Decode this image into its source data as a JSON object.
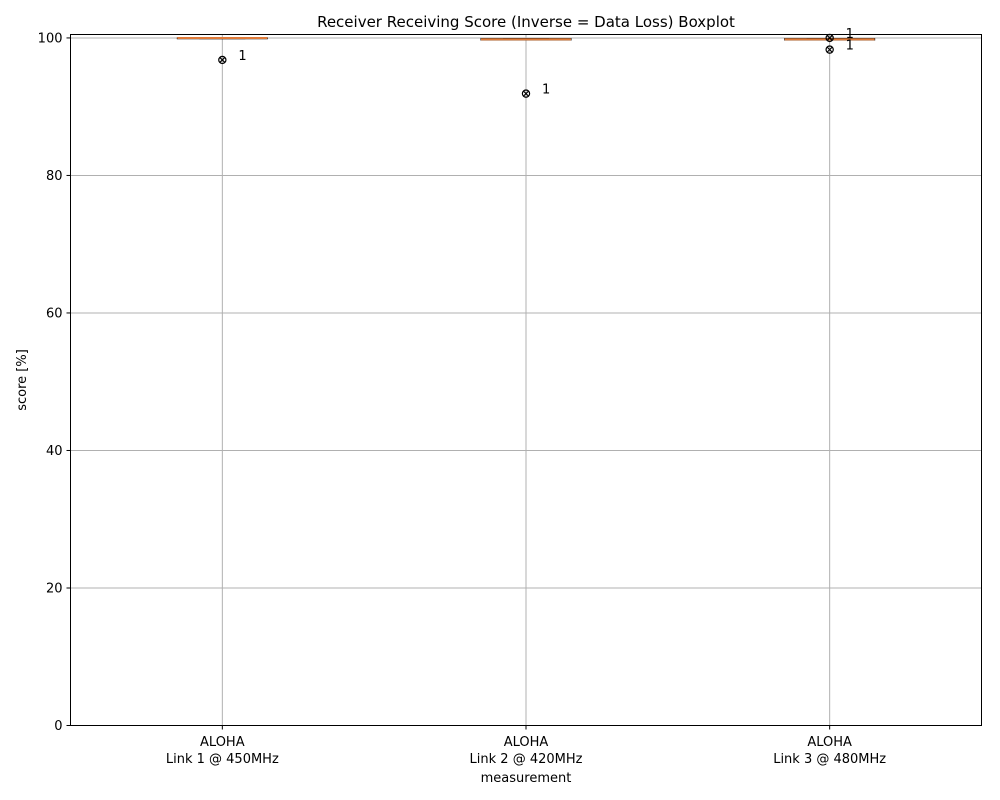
{
  "chart_data": {
    "type": "box",
    "title": "Receiver Receiving Score (Inverse = Data Loss) Boxplot",
    "xlabel": "measurement",
    "ylabel": "score [%]",
    "ylim": [
      0,
      100.5
    ],
    "yticks": [
      0,
      20,
      40,
      60,
      80,
      100
    ],
    "grid": true,
    "categories": [
      {
        "line1": "ALOHA",
        "line2": "Link 1 @ 450MHz"
      },
      {
        "line1": "ALOHA",
        "line2": "Link 2 @ 420MHz"
      },
      {
        "line1": "ALOHA",
        "line2": "Link 3 @ 480MHz"
      }
    ],
    "boxes": [
      {
        "q1": 99.9,
        "median": 100.0,
        "q3": 100.0,
        "whisker_low": 99.9,
        "whisker_high": 100.0,
        "outliers": [
          {
            "value": 96.8,
            "label": "1"
          }
        ]
      },
      {
        "q1": 99.7,
        "median": 99.8,
        "q3": 99.9,
        "whisker_low": 99.7,
        "whisker_high": 99.9,
        "outliers": [
          {
            "value": 91.9,
            "label": "1"
          }
        ]
      },
      {
        "q1": 99.7,
        "median": 99.8,
        "q3": 99.9,
        "whisker_low": 99.7,
        "whisker_high": 99.9,
        "outliers": [
          {
            "value": 100.0,
            "label": "1"
          },
          {
            "value": 98.3,
            "label": "1"
          }
        ]
      }
    ],
    "colors": {
      "median": "#e07b39",
      "grid": "#b0b0b0",
      "axis": "#000000"
    }
  }
}
